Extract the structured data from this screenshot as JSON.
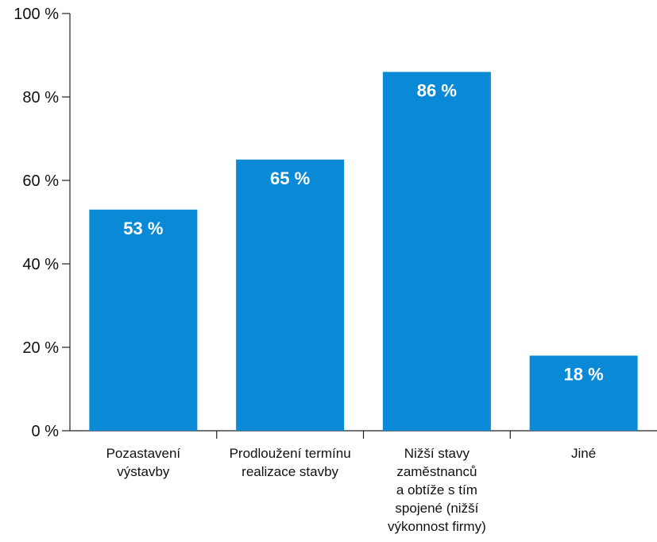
{
  "chart_data": {
    "type": "bar",
    "categories": [
      [
        "Pozastavení",
        "výstavby"
      ],
      [
        "Prodloužení termínu",
        "realizace stavby"
      ],
      [
        "Nižší stavy",
        "zaměstnanců",
        "a obtíže s tím",
        "spojené (nižší",
        "výkonnost firmy)"
      ],
      [
        "Jiné"
      ]
    ],
    "values": [
      53,
      65,
      86,
      18
    ],
    "data_labels": [
      "53 %",
      "65 %",
      "86 %",
      "18 %"
    ],
    "y_ticks": [
      0,
      20,
      40,
      60,
      80,
      100
    ],
    "y_tick_labels": [
      "0 %",
      "20 %",
      "40 %",
      "60 %",
      "80 %",
      "100 %"
    ],
    "ylim": [
      0,
      100
    ],
    "title": "",
    "xlabel": "",
    "ylabel": "",
    "grid": false,
    "bar_color": "#0a8ad6"
  }
}
